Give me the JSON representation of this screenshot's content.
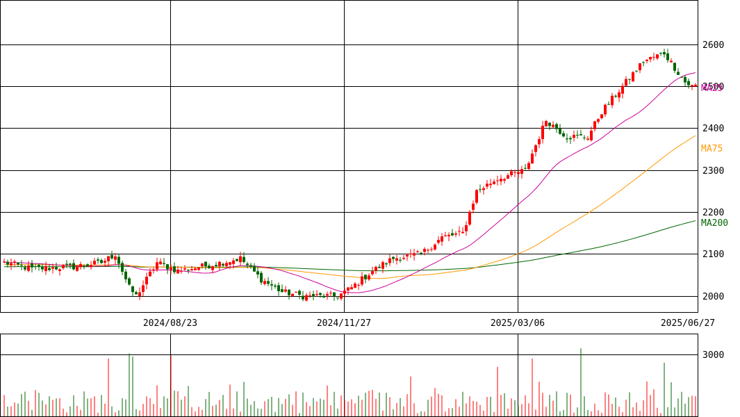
{
  "chart_data": [
    {
      "type": "candlestick",
      "panel": "price",
      "x_tick_labels": [
        "2024/08/23",
        "2024/11/27",
        "2025/03/06",
        "2025/06/27"
      ],
      "y_ticks": [
        2000,
        2100,
        2200,
        2300,
        2400,
        2500,
        2600
      ],
      "ylim": [
        1960,
        2700
      ],
      "grid": true,
      "up_color": "#ff0000",
      "down_color": "#006600",
      "note": "anchor points (session index → price) used to reconstruct the candle path",
      "close_anchors": [
        [
          0,
          2080
        ],
        [
          8,
          2065
        ],
        [
          20,
          2070
        ],
        [
          28,
          2080
        ],
        [
          32,
          2100
        ],
        [
          36,
          2020
        ],
        [
          38,
          2000
        ],
        [
          44,
          2080
        ],
        [
          50,
          2060
        ],
        [
          60,
          2075
        ],
        [
          68,
          2090
        ],
        [
          74,
          2040
        ],
        [
          80,
          2010
        ],
        [
          86,
          2000
        ],
        [
          96,
          2000
        ],
        [
          100,
          2020
        ],
        [
          106,
          2060
        ],
        [
          112,
          2090
        ],
        [
          120,
          2100
        ],
        [
          126,
          2140
        ],
        [
          132,
          2150
        ],
        [
          136,
          2250
        ],
        [
          142,
          2280
        ],
        [
          150,
          2300
        ],
        [
          156,
          2420
        ],
        [
          162,
          2380
        ],
        [
          168,
          2380
        ],
        [
          172,
          2440
        ],
        [
          178,
          2500
        ],
        [
          184,
          2560
        ],
        [
          190,
          2580
        ],
        [
          196,
          2510
        ],
        [
          198,
          2500
        ]
      ],
      "ma_series": [
        {
          "name": "MA25",
          "color": "#cc0099",
          "last_value": 2490
        },
        {
          "name": "MA75",
          "color": "#ff9900",
          "last_value": 2350
        },
        {
          "name": "MA200",
          "color": "#006600",
          "last_value": 2170
        }
      ]
    },
    {
      "type": "bar",
      "panel": "volume",
      "y_ticks": [
        3000
      ],
      "ylim": [
        0,
        3500
      ],
      "grid": true,
      "spikes": [
        [
          30,
          2800
        ],
        [
          36,
          3050
        ],
        [
          37,
          2900
        ],
        [
          48,
          2950
        ],
        [
          142,
          2400
        ],
        [
          152,
          2800
        ],
        [
          166,
          3300
        ],
        [
          190,
          2600
        ]
      ]
    }
  ],
  "labels": {
    "ma25": "MA25",
    "ma75": "MA75",
    "ma200": "MA200",
    "x1": "2024/08/23",
    "x2": "2024/11/27",
    "x3": "2025/03/06",
    "x4": "2025/06/27",
    "y2000": "2000",
    "y2100": "2100",
    "y2200": "2200",
    "y2300": "2300",
    "y2400": "2400",
    "y2500": "2500",
    "y2600": "2600",
    "v3000": "3000"
  }
}
